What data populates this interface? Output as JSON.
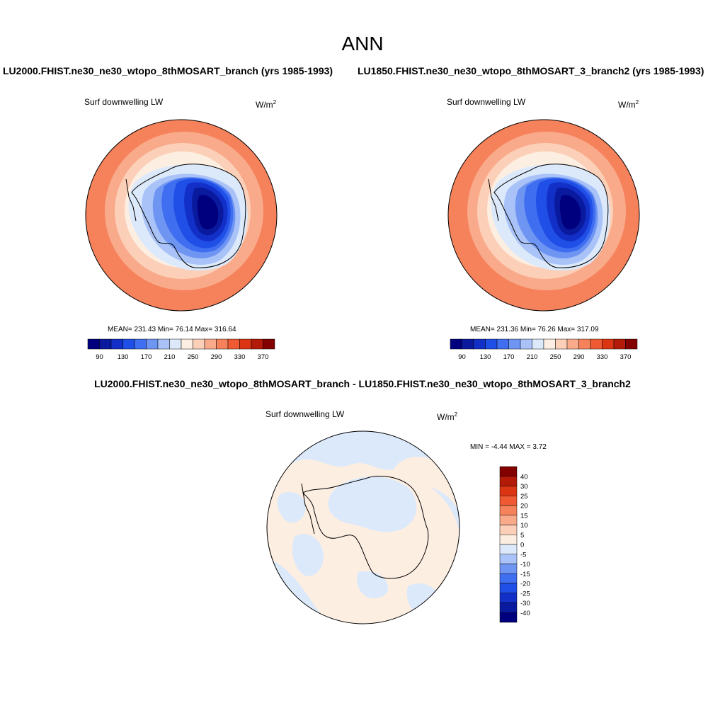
{
  "title": "ANN",
  "panels": {
    "left_case": "LU2000.FHIST.ne30_ne30_wtopo_8thMOSART_branch (yrs 1985-1993)",
    "right_case": "LU1850.FHIST.ne30_ne30_wtopo_8thMOSART_3_branch2 (yrs 1985-1993)",
    "diff_case": "LU2000.FHIST.ne30_ne30_wtopo_8thMOSART_branch - LU1850.FHIST.ne30_ne30_wtopo_8thMOSART_3_branch2"
  },
  "maps": [
    {
      "variable": "Surf downwelling LW",
      "unit_base": "W/m",
      "unit_exp": "2",
      "stats": "MEAN= 231.43  Min=  76.14  Max= 316.64"
    },
    {
      "variable": "Surf downwelling LW",
      "unit_base": "W/m",
      "unit_exp": "2",
      "stats": "MEAN= 231.36  Min=  76.26  Max= 317.09"
    },
    {
      "variable": "Surf downwelling LW",
      "unit_base": "W/m",
      "unit_exp": "2",
      "stats": "MIN =  -4.44 MAX =   3.72"
    }
  ],
  "colorbar_abs": {
    "labels": [
      "90",
      "130",
      "170",
      "210",
      "250",
      "290",
      "330",
      "370"
    ],
    "colors": [
      "#00007f",
      "#0a1a9e",
      "#1230c8",
      "#1f4fe6",
      "#3f6ef0",
      "#6f95f3",
      "#a9c2f7",
      "#dce9fb",
      "#fdeee2",
      "#fcd0b8",
      "#f9aa8a",
      "#f6825c",
      "#f05a32",
      "#dc3514",
      "#b41a08",
      "#830000"
    ]
  },
  "colorbar_diff": {
    "labels": [
      "40",
      "30",
      "25",
      "20",
      "15",
      "10",
      "5",
      "0",
      "-5",
      "-10",
      "-15",
      "-20",
      "-25",
      "-30",
      "-40"
    ],
    "colors": [
      "#830000",
      "#b41a08",
      "#dc3514",
      "#f05a32",
      "#f6825c",
      "#f9aa8a",
      "#fcd0b8",
      "#fdeee2",
      "#dce9fb",
      "#a9c2f7",
      "#6f95f3",
      "#3f6ef0",
      "#1f4fe6",
      "#1230c8",
      "#0a1a9e",
      "#00007f"
    ]
  }
}
